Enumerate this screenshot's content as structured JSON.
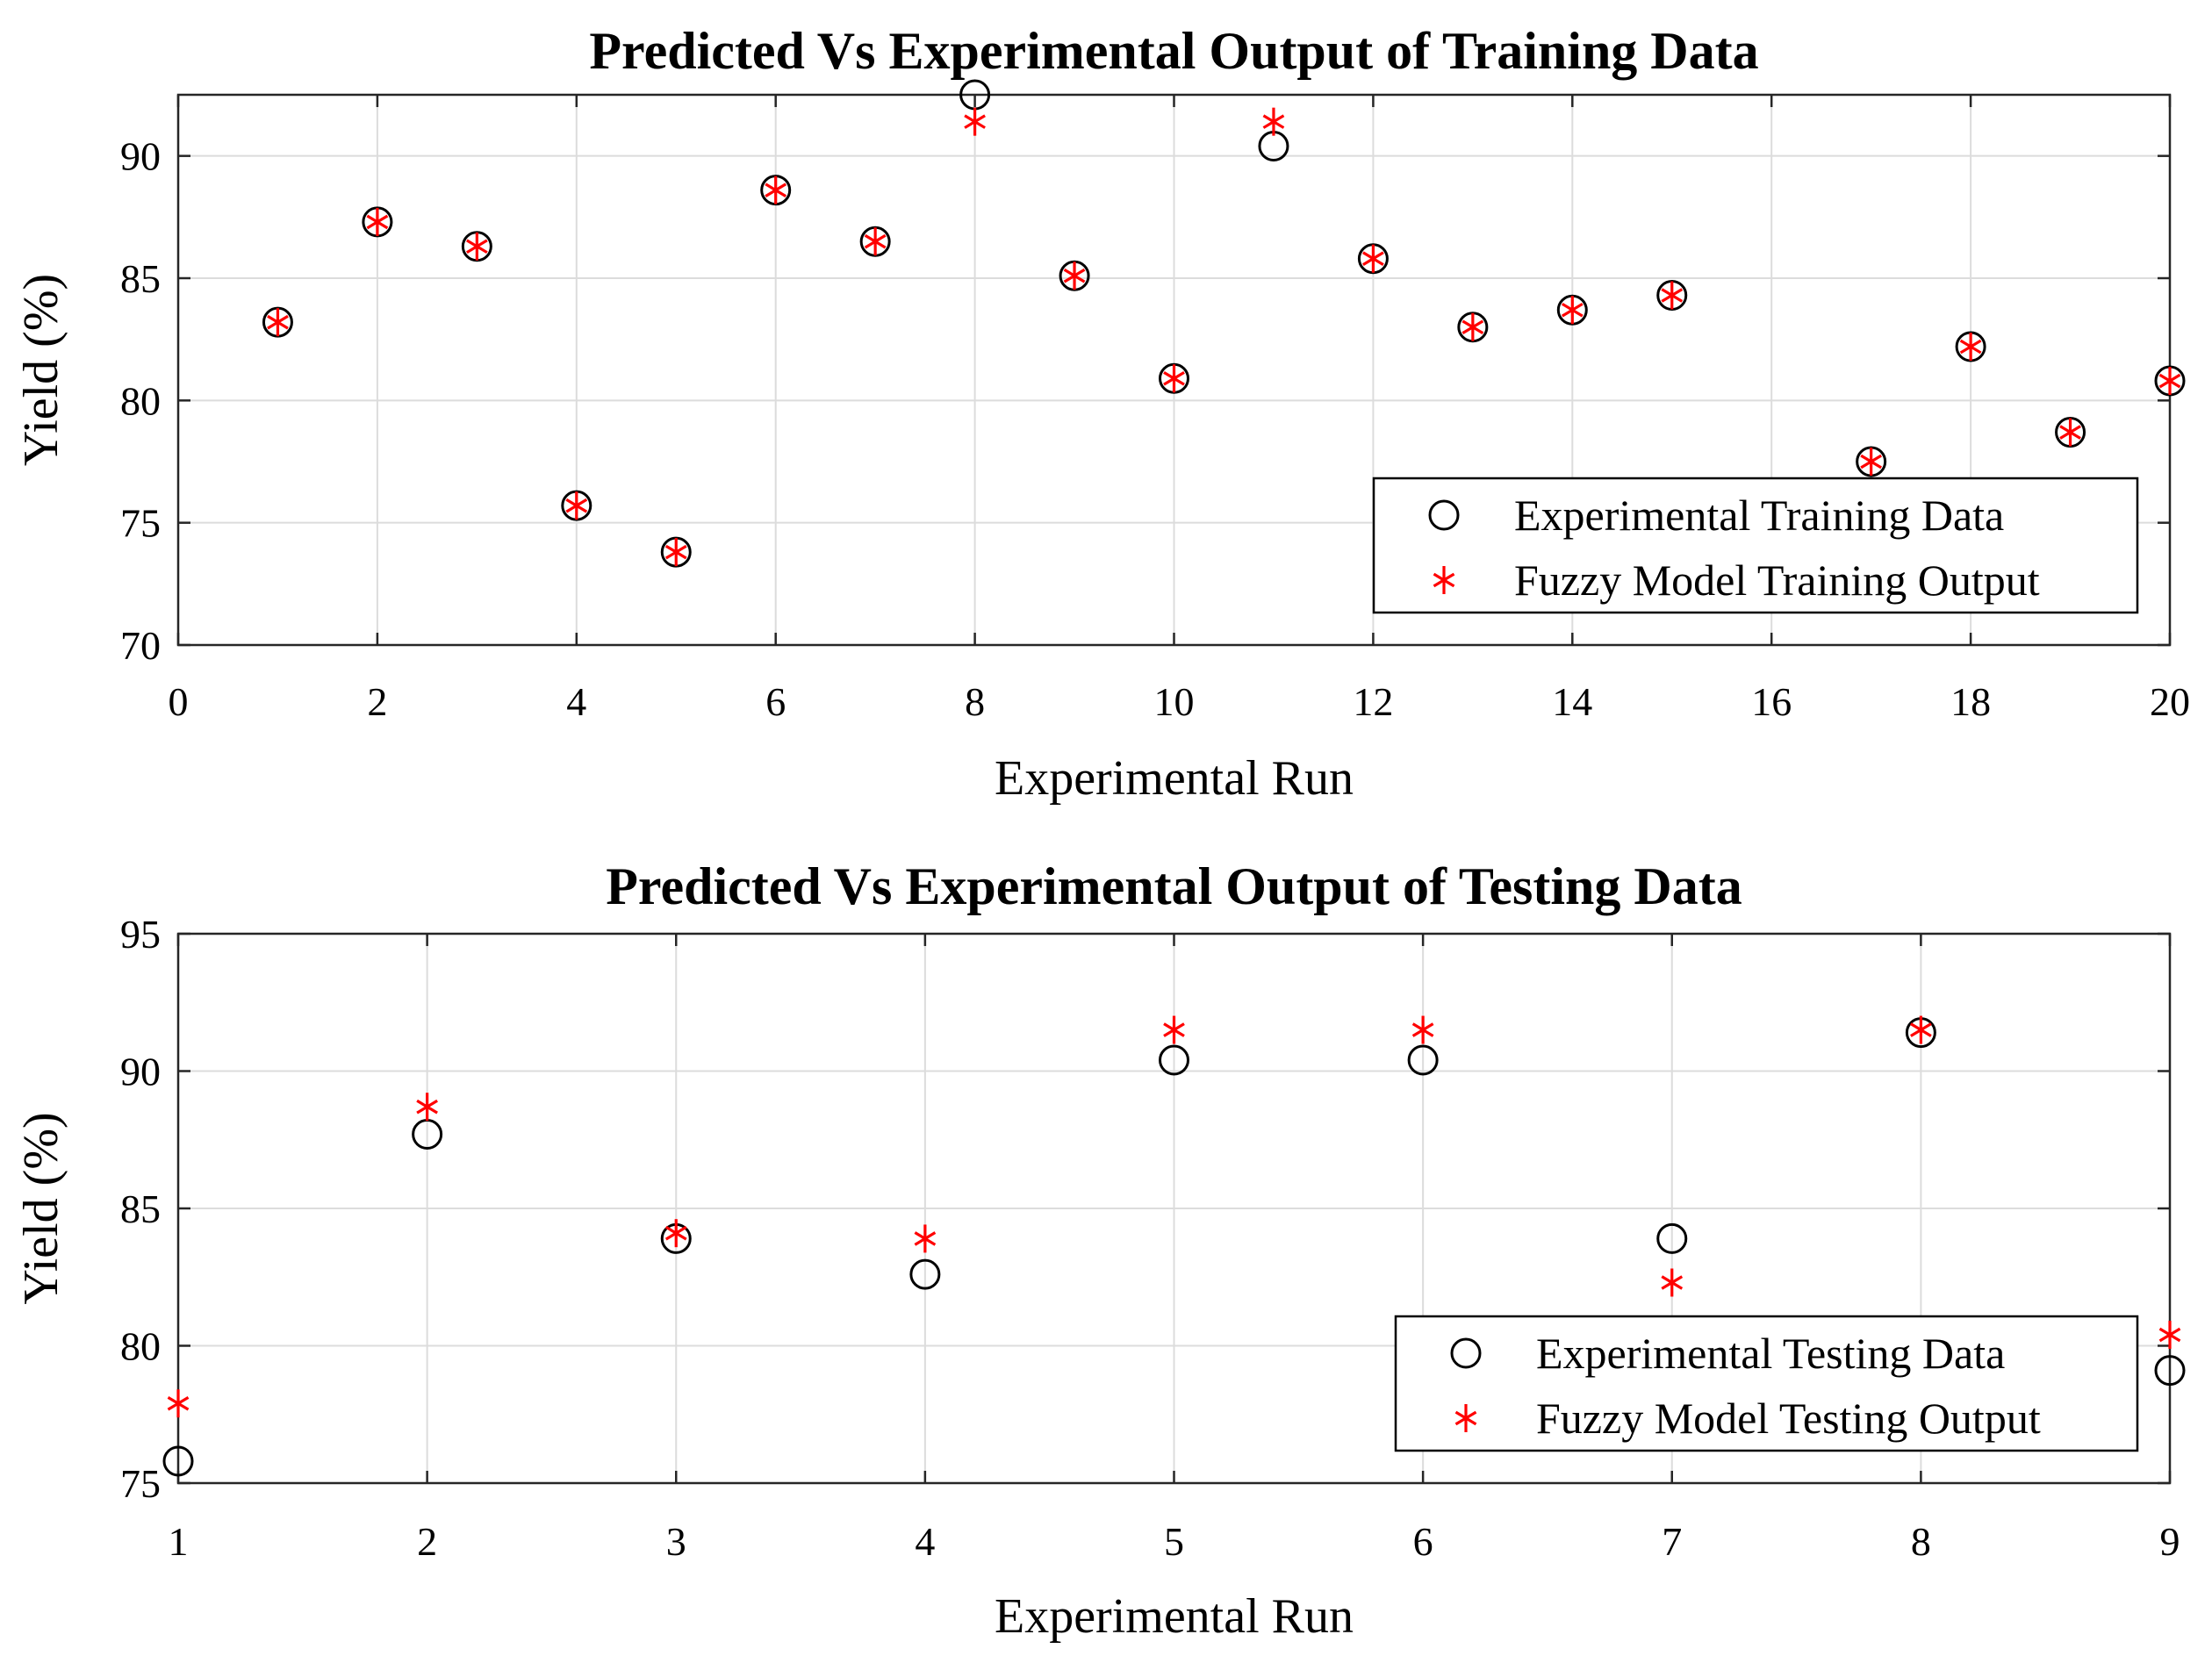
{
  "chart_data": [
    {
      "type": "scatter",
      "title": "Predicted Vs Experimental Output of Training Data",
      "xlabel": "Experimental Run",
      "ylabel": "Yield (%)",
      "xlim": [
        0,
        20
      ],
      "ylim": [
        70,
        92.5
      ],
      "xticks": [
        0,
        2,
        4,
        6,
        8,
        10,
        12,
        14,
        16,
        18,
        20
      ],
      "yticks": [
        70,
        75,
        80,
        85,
        90
      ],
      "grid": true,
      "legend_position": "bottom-right",
      "series": [
        {
          "name": "Experimental Training Data",
          "marker": "circle",
          "color": "#000000",
          "x": [
            1,
            2,
            3,
            4,
            5,
            6,
            7,
            8,
            9,
            10,
            11,
            12,
            13,
            14,
            15,
            17,
            18,
            19,
            20
          ],
          "values": [
            83.2,
            87.3,
            86.3,
            75.7,
            73.8,
            88.6,
            86.5,
            92.5,
            85.1,
            80.9,
            90.4,
            85.8,
            83.0,
            83.7,
            84.3,
            77.5,
            82.2,
            78.7,
            80.8
          ]
        },
        {
          "name": "Fuzzy Model Training Output",
          "marker": "asterisk",
          "color": "#ff0000",
          "x": [
            1,
            2,
            3,
            4,
            5,
            6,
            7,
            8,
            9,
            10,
            11,
            12,
            13,
            14,
            15,
            17,
            18,
            19,
            20
          ],
          "values": [
            83.2,
            87.3,
            86.3,
            75.7,
            73.8,
            88.6,
            86.5,
            91.4,
            85.1,
            80.9,
            91.4,
            85.8,
            83.0,
            83.7,
            84.3,
            77.5,
            82.2,
            78.7,
            80.8
          ]
        }
      ]
    },
    {
      "type": "scatter",
      "title": "Predicted Vs Experimental Output of Testing Data",
      "xlabel": "Experimental Run",
      "ylabel": "Yield (%)",
      "xlim": [
        1,
        9
      ],
      "ylim": [
        75,
        95
      ],
      "xticks": [
        1,
        2,
        3,
        4,
        5,
        6,
        7,
        8,
        9
      ],
      "yticks": [
        75,
        80,
        85,
        90,
        95
      ],
      "grid": true,
      "legend_position": "bottom-right",
      "series": [
        {
          "name": "Experimental Testing Data",
          "marker": "circle",
          "color": "#000000",
          "x": [
            1,
            2,
            3,
            4,
            5,
            6,
            7,
            8,
            9
          ],
          "values": [
            75.8,
            87.7,
            83.9,
            82.6,
            90.4,
            90.4,
            83.9,
            91.4,
            79.1
          ]
        },
        {
          "name": "Fuzzy Model Testing Output",
          "marker": "asterisk",
          "color": "#ff0000",
          "x": [
            1,
            2,
            3,
            4,
            5,
            6,
            7,
            8,
            9
          ],
          "values": [
            77.9,
            88.7,
            84.1,
            83.9,
            91.5,
            91.5,
            82.3,
            91.5,
            80.4
          ]
        }
      ]
    }
  ]
}
